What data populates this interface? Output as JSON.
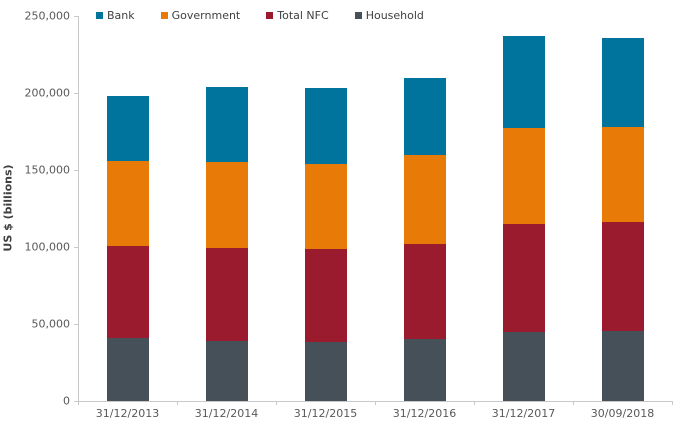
{
  "chart_data": {
    "type": "bar",
    "subtype": "stacked",
    "title": "",
    "xlabel": "",
    "ylabel": "US $ (billions)",
    "ylim": [
      0,
      250000
    ],
    "ytick_step": 50000,
    "yticks": [
      0,
      50000,
      100000,
      150000,
      200000,
      250000
    ],
    "ytick_labels": [
      "0",
      "50,000",
      "100,000",
      "150,000",
      "200,000",
      "250,000"
    ],
    "grid": false,
    "legend_position": "top",
    "legend_order": [
      "Bank",
      "Government",
      "Total NFC",
      "Household"
    ],
    "categories": [
      "31/12/2013",
      "31/12/2014",
      "31/12/2015",
      "31/12/2016",
      "31/12/2017",
      "30/09/2018"
    ],
    "stack_order_bottom_to_top": [
      "Household",
      "Total NFC",
      "Government",
      "Bank"
    ],
    "series": [
      {
        "name": "Bank",
        "color": "#00749C",
        "values": [
          42000,
          49000,
          49500,
          50000,
          59500,
          58000
        ]
      },
      {
        "name": "Government",
        "color": "#E87A08",
        "values": [
          55500,
          55500,
          55500,
          58000,
          62500,
          61500
        ]
      },
      {
        "name": "Total NFC",
        "color": "#9A1B2E",
        "values": [
          59500,
          60500,
          60000,
          62000,
          70500,
          71000
        ]
      },
      {
        "name": "Household",
        "color": "#465059",
        "values": [
          41000,
          39000,
          38500,
          40000,
          44500,
          45500
        ]
      }
    ],
    "totals": [
      198000,
      204000,
      203500,
      210000,
      237000,
      236000
    ]
  },
  "colors": {
    "axis_line": "#c9c9c9",
    "tick_label": "#595959",
    "legend_text": "#404040",
    "background": "#ffffff"
  }
}
